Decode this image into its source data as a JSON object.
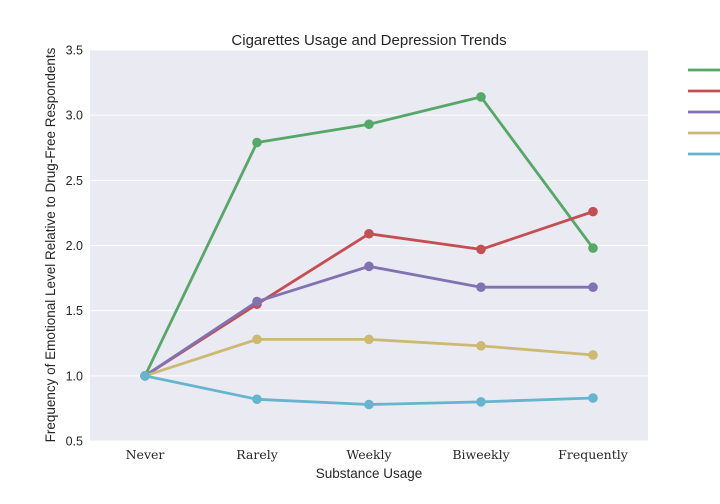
{
  "chart_data": {
    "type": "line",
    "title": "Cigarettes Usage and Depression Trends",
    "xlabel": "Substance Usage",
    "ylabel": "Frequency of Emotional Level Relative to Drug-Free Respondents",
    "categories": [
      "Never",
      "Rarely",
      "Weekly",
      "Biweekly",
      "Frequently"
    ],
    "ylim": [
      0.5,
      3.5
    ],
    "yticks": [
      "0.5",
      "1.0",
      "1.5",
      "2.0",
      "2.5",
      "3.0",
      "3.5"
    ],
    "grid": true,
    "legend_position": "right",
    "series": [
      {
        "color": "#55a868",
        "values": [
          1.0,
          2.79,
          2.93,
          3.14,
          1.98
        ]
      },
      {
        "color": "#c44e52",
        "values": [
          1.0,
          1.55,
          2.09,
          1.97,
          2.26
        ]
      },
      {
        "color": "#8172b2",
        "values": [
          1.0,
          1.57,
          1.84,
          1.68,
          1.68
        ]
      },
      {
        "color": "#ccb974",
        "values": [
          1.0,
          1.28,
          1.28,
          1.23,
          1.16
        ]
      },
      {
        "color": "#64b5cd",
        "values": [
          1.0,
          0.82,
          0.78,
          0.8,
          0.83
        ]
      }
    ]
  },
  "colors": {
    "plot_background": "#eaeaf2",
    "grid": "#ffffff"
  }
}
